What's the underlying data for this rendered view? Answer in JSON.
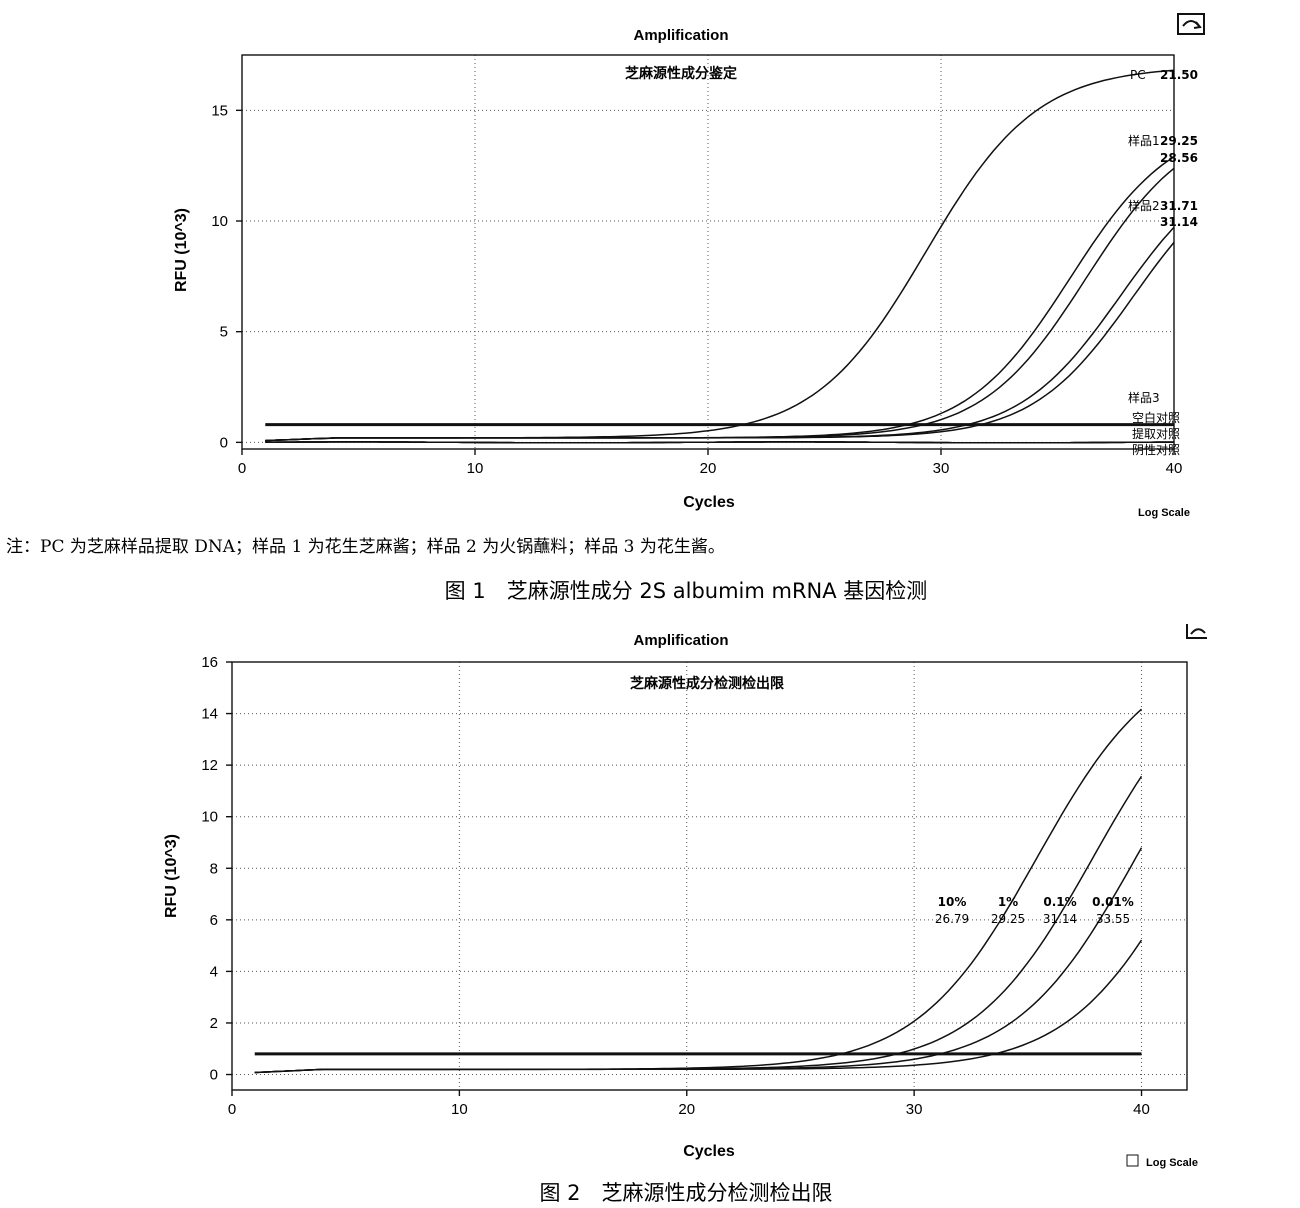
{
  "figure1": {
    "caption": "图 1　芝麻源性成分 2S albumim mRNA 基因检测",
    "note": "注：PC 为芝麻样品提取 DNA；样品 1 为花生芝麻酱；样品 2 为火锅蘸料；样品 3 为花生酱。",
    "log_scale_label": "Log Scale",
    "chart_data": {
      "type": "line",
      "title": "Amplification",
      "subtitle": "芝麻源性成分鉴定",
      "xlabel": "Cycles",
      "ylabel": "RFU (10^3)",
      "xlim": [
        0,
        40
      ],
      "ylim": [
        -0.3,
        17.5
      ],
      "xticks": [
        0,
        10,
        20,
        30,
        40
      ],
      "yticks": [
        0,
        5,
        10,
        15
      ],
      "grid": true,
      "threshold": 0.8,
      "series": [
        {
          "name": "PC",
          "cq": "21.50",
          "ct": 21.5,
          "plateau": 17.0,
          "k": 0.42,
          "d": 0.2
        },
        {
          "name": "样品1",
          "cq": "29.25",
          "ct": 29.25,
          "plateau": 14.6,
          "k": 0.45,
          "d": 0.2
        },
        {
          "name": "",
          "cq": "28.56",
          "ct": 28.56,
          "plateau": 14.6,
          "k": 0.45,
          "d": 0.2
        },
        {
          "name": "样品2",
          "cq": "31.71",
          "ct": 31.71,
          "plateau": 13.0,
          "k": 0.46,
          "d": 0.2
        },
        {
          "name": "",
          "cq": "31.14",
          "ct": 31.14,
          "plateau": 13.0,
          "k": 0.46,
          "d": 0.2
        },
        {
          "name": "样品3",
          "cq": "",
          "ct": null,
          "flat": 0.0
        },
        {
          "name": "空白对照",
          "cq": "",
          "ct": null,
          "flat": 0.0
        },
        {
          "name": "提取对照",
          "cq": "",
          "ct": null,
          "flat": 0.0
        },
        {
          "name": "阴性对照",
          "cq": "",
          "ct": null,
          "flat": 0.0
        }
      ]
    }
  },
  "figure2": {
    "caption": "图 2　芝麻源性成分检测检出限",
    "log_scale_label": "Log Scale",
    "chart_data": {
      "type": "line",
      "title": "Amplification",
      "subtitle": "芝麻源性成分检测检出限",
      "xlabel": "Cycles",
      "ylabel": "RFU (10^3)",
      "xlim": [
        0,
        42
      ],
      "ylim": [
        -0.6,
        16
      ],
      "xticks": [
        0,
        10,
        20,
        30,
        40
      ],
      "yticks": [
        0,
        2,
        4,
        6,
        8,
        10,
        12,
        14,
        16
      ],
      "grid": true,
      "threshold": 0.8,
      "series": [
        {
          "name": "10%",
          "cq": "26.79",
          "ct": 26.79,
          "plateau": 16.6,
          "k": 0.38,
          "d": 0.2
        },
        {
          "name": "1%",
          "cq": "29.25",
          "ct": 29.25,
          "plateau": 16.6,
          "k": 0.38,
          "d": 0.2
        },
        {
          "name": "0.1%",
          "cq": "31.14",
          "ct": 31.14,
          "plateau": 16.6,
          "k": 0.38,
          "d": 0.2
        },
        {
          "name": "0.01%",
          "cq": "33.55",
          "ct": 33.55,
          "plateau": 16.6,
          "k": 0.38,
          "d": 0.2
        }
      ]
    }
  }
}
